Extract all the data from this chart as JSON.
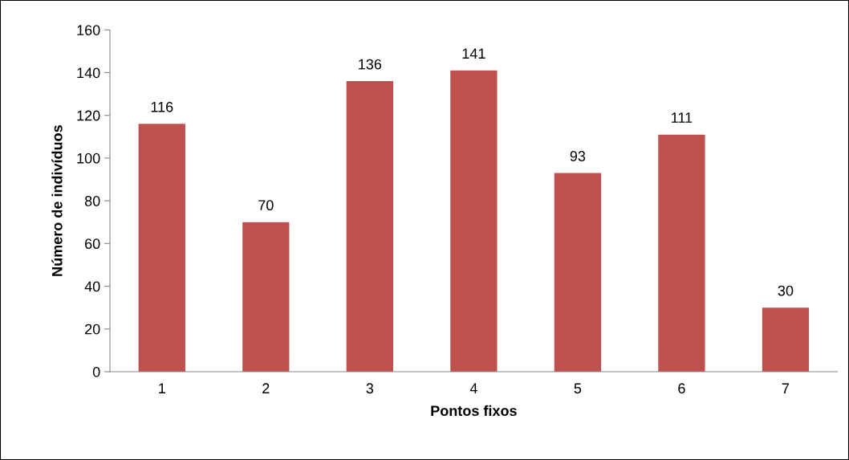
{
  "chart_data": {
    "type": "bar",
    "xlabel": "Pontos fixos",
    "ylabel": "Número de indivíduos",
    "categories": [
      "1",
      "2",
      "3",
      "4",
      "5",
      "6",
      "7"
    ],
    "values": [
      116,
      70,
      136,
      141,
      93,
      111,
      30
    ],
    "color": "#c0504d",
    "ylim": [
      0,
      160
    ],
    "yticks": [
      0,
      20,
      40,
      60,
      80,
      100,
      120,
      140,
      160
    ],
    "grid": false,
    "legend": false,
    "data_labels": true
  }
}
